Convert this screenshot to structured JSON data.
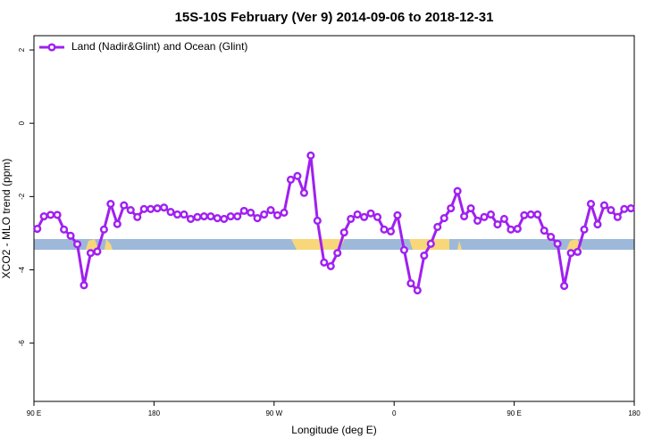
{
  "chart_data": {
    "type": "line",
    "title": "15S-10S February (Ver 9)   2014-09-06 to 2018-12-31",
    "x_label": "Longitude (deg E)",
    "y_label": "XCO2 - MLO trend (ppm)",
    "legend_position": "top-left",
    "xlim": [
      90,
      540
    ],
    "ylim": [
      -7.59,
      2.39
    ],
    "xticks": [
      {
        "value": 90,
        "label": "90 E"
      },
      180,
      {
        "value": 270,
        "label": "90 W"
      },
      {
        "value": 360,
        "label": "0"
      },
      {
        "value": 450,
        "label": "90 E"
      },
      {
        "value": 540,
        "label": "180"
      }
    ],
    "yticks": [
      -6,
      -4,
      -2,
      0,
      2
    ],
    "x": [
      92.5,
      97.5,
      102.5,
      107.5,
      112.5,
      117.5,
      122.5,
      127.5,
      132.5,
      137.5,
      142.5,
      147.5,
      152.5,
      157.5,
      162.5,
      167.5,
      172.5,
      177.5,
      182.5,
      187.5,
      192.5,
      197.5,
      202.5,
      207.5,
      212.5,
      217.5,
      222.5,
      227.5,
      232.5,
      237.5,
      242.5,
      247.5,
      252.5,
      257.5,
      262.5,
      267.5,
      272.5,
      277.5,
      282.5,
      287.5,
      292.5,
      297.5,
      302.5,
      307.5,
      312.5,
      317.5,
      322.5,
      327.5,
      332.5,
      337.5,
      342.5,
      347.5,
      352.5,
      357.5,
      362.5,
      367.5,
      372.5,
      377.5,
      382.5,
      387.5,
      392.5,
      397.5,
      402.5,
      407.5,
      412.5,
      417.5,
      422.5,
      427.5,
      432.5,
      437.5,
      442.5,
      447.5,
      452.5,
      457.5,
      462.5,
      467.5,
      472.5,
      477.5,
      482.5,
      487.5,
      492.5,
      497.5,
      502.5,
      507.5,
      512.5,
      517.5,
      522.5,
      527.5,
      532.5,
      537.5
    ],
    "series": [
      {
        "name": "Land (Nadir&Glint) and Ocean (Glint)",
        "color": "#a020f0",
        "values": [
          -2.88,
          -2.54,
          -2.5,
          -2.5,
          -2.9,
          -3.07,
          -3.3,
          -4.42,
          -3.54,
          -3.5,
          -2.9,
          -2.2,
          -2.75,
          -2.24,
          -2.37,
          -2.56,
          -2.34,
          -2.34,
          -2.32,
          -2.3,
          -2.42,
          -2.49,
          -2.49,
          -2.61,
          -2.56,
          -2.54,
          -2.54,
          -2.59,
          -2.61,
          -2.54,
          -2.54,
          -2.39,
          -2.44,
          -2.59,
          -2.49,
          -2.37,
          -2.51,
          -2.44,
          -1.54,
          -1.44,
          -1.9,
          -0.88,
          -2.66,
          -3.8,
          -3.9,
          -3.54,
          -2.98,
          -2.61,
          -2.49,
          -2.56,
          -2.46,
          -2.56,
          -2.9,
          -2.95,
          -2.51,
          -3.46,
          -4.37,
          -4.56,
          -3.61,
          -3.29,
          -2.83,
          -2.59,
          -2.32,
          -1.85,
          -2.54,
          -2.32,
          -2.66,
          -2.56,
          -2.49,
          -2.76,
          -2.61,
          -2.9,
          -2.88,
          -2.51,
          -2.49,
          -2.49,
          -2.93,
          -3.1,
          -3.29,
          -4.44,
          -3.54,
          -3.51,
          -2.9,
          -2.2,
          -2.76,
          -2.24,
          -2.37,
          -2.56,
          -2.34,
          -2.32
        ]
      }
    ]
  }
}
